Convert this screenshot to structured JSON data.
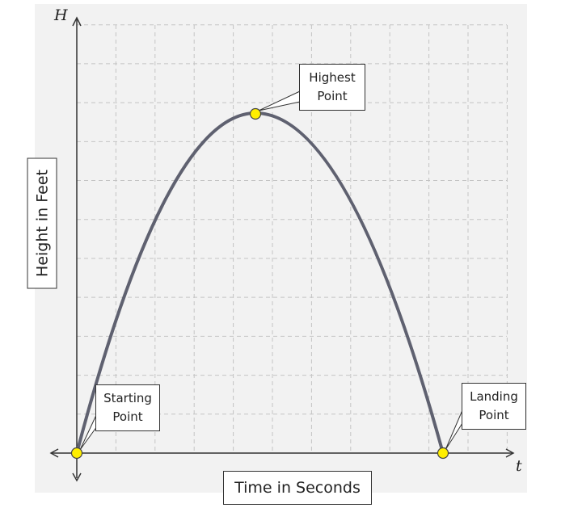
{
  "axes": {
    "y_symbol": "H",
    "x_symbol": "t",
    "y_label": "Height in Feet",
    "x_label": "Time in Seconds"
  },
  "callouts": [
    {
      "label": "Starting Point"
    },
    {
      "label": "Highest Point"
    },
    {
      "label": "Landing Point"
    }
  ]
}
